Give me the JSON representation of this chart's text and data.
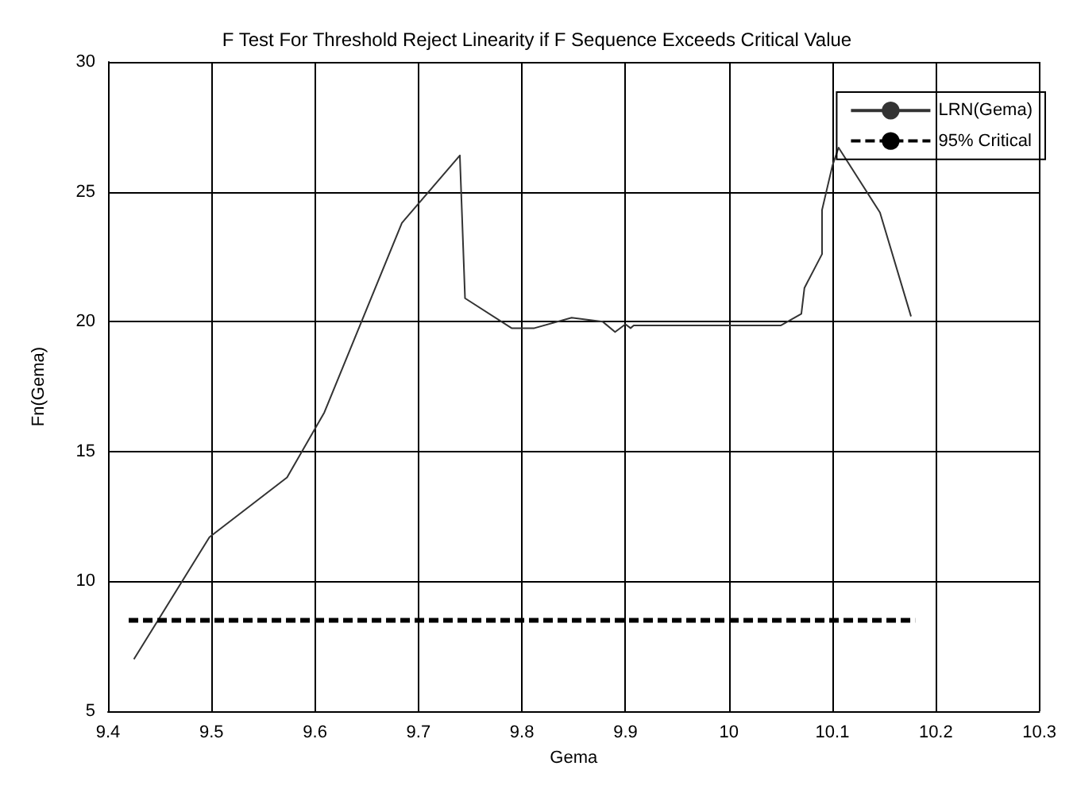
{
  "chart_data": {
    "type": "line",
    "title": "F Test For Threshold Reject Linearity if F Sequence Exceeds Critical Value",
    "xlabel": "Gema",
    "ylabel": "Fn(Gema)",
    "xlim": [
      9.4,
      10.3
    ],
    "xticks": [
      9.4,
      9.5,
      9.6,
      9.7,
      9.8,
      9.9,
      10,
      10.1,
      10.2,
      10.3
    ],
    "ylim": [
      5,
      30
    ],
    "yticks": [
      5,
      10,
      15,
      20,
      25,
      30
    ],
    "grid": true,
    "legend": "top right",
    "series": [
      {
        "name": "LRN(Gema)",
        "color": "#333333",
        "line_style": "solid",
        "x": [
          9.425,
          9.498,
          9.573,
          9.609,
          9.684,
          9.74,
          9.745,
          9.79,
          9.812,
          9.848,
          9.878,
          9.89,
          9.9,
          9.905,
          9.908,
          10.05,
          10.07,
          10.073,
          10.09,
          10.09,
          10.1,
          10.106,
          10.146,
          10.176
        ],
        "values": [
          7.0,
          11.7,
          14.0,
          16.5,
          23.8,
          26.4,
          20.9,
          19.75,
          19.75,
          20.15,
          20.0,
          19.6,
          19.9,
          19.75,
          19.85,
          19.85,
          20.3,
          21.3,
          22.6,
          24.3,
          26.0,
          26.7,
          24.2,
          20.2
        ]
      },
      {
        "name": "95% Critical",
        "color": "#000000",
        "line_style": "dashed",
        "x": [
          9.42,
          10.18
        ],
        "values": [
          8.5,
          8.5
        ]
      }
    ]
  }
}
